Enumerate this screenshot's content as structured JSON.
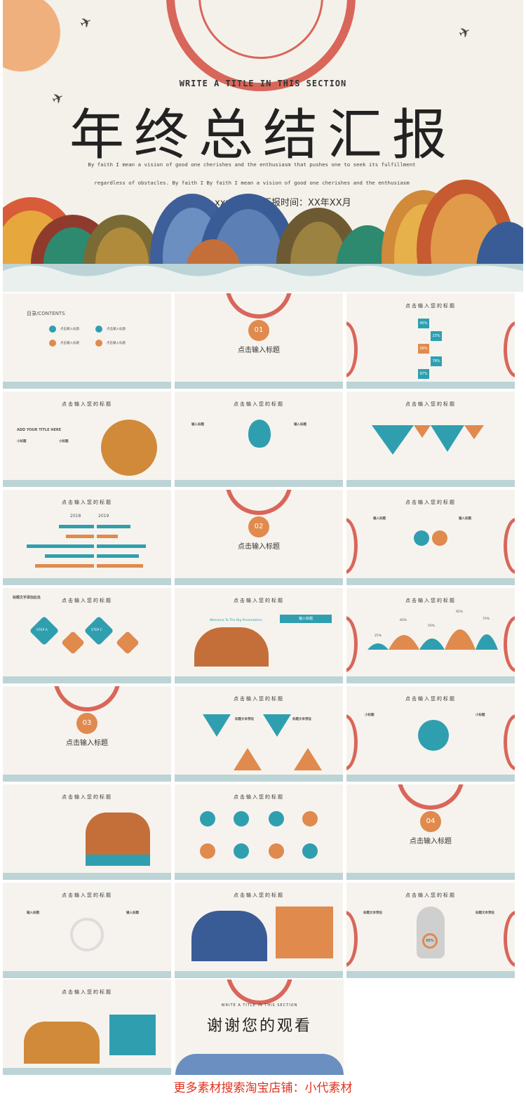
{
  "hero": {
    "subtitle": "WRITE A TITLE IN THIS SECTION",
    "title": "年终总结汇报",
    "description": "By faith I mean a vision of good one cherishes and the enthusiasm that pushes one to seek its fulfillment regardless of obstacles. By faith I By faith I mean a vision of good one cherishes and the enthusiasm",
    "reporter": "汇报人：  xxx",
    "report_time": "汇报时间：XX年XX月"
  },
  "slides": {
    "heading": "点击输入您的标题",
    "toc_title": "目录/CONTENTS",
    "toc_item": "点击输入标题",
    "section_title": "点击输入标题",
    "section_nums": [
      "01",
      "02",
      "03",
      "04"
    ],
    "add_title": "ADD YOUR TITLE HERE",
    "sub": "小标题",
    "input_title": "输入标题",
    "percentages": [
      "45%",
      "23%",
      "56%",
      "78%",
      "97%"
    ],
    "years": [
      "2018",
      "2019"
    ],
    "steps": [
      "STEP A",
      "STEP B",
      "STEP C",
      "STEP D"
    ],
    "text_here": "标题文字添加此处",
    "welcome": "Welcome To The Big Presentation",
    "wave_pcts": [
      "25%",
      "60%",
      "50%",
      "95%",
      "70%"
    ],
    "text_title": "标题文本预设",
    "pct_65": "65%"
  },
  "end_slide": {
    "subtitle": "WRITE A TITLE IN THIS SECTION",
    "title": "谢谢您的观看"
  },
  "footer": "更多素材搜索淘宝店铺：小代素材",
  "colors": {
    "teal": "#2f9fb0",
    "orange": "#e08a4e",
    "red": "#d9665a",
    "footer_red": "#e0321e"
  }
}
